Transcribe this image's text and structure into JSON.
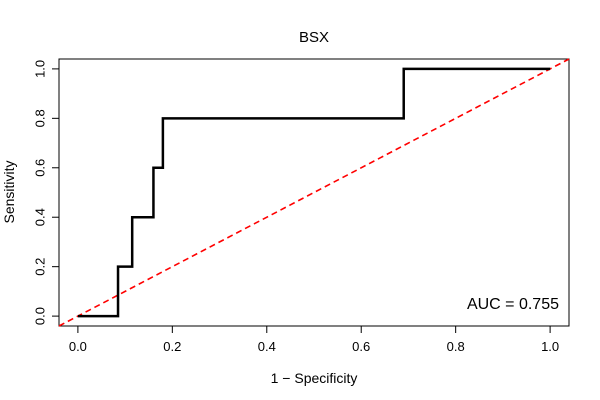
{
  "chart_data": {
    "type": "line",
    "title": "BSX",
    "xlabel": "1 − Specificity",
    "ylabel": "Sensitivity",
    "xlim": [
      -0.04,
      1.04
    ],
    "ylim": [
      -0.04,
      1.04
    ],
    "xticks": [
      "0.0",
      "0.2",
      "0.4",
      "0.6",
      "0.8",
      "1.0"
    ],
    "yticks": [
      "0.0",
      "0.2",
      "0.4",
      "0.6",
      "0.8",
      "1.0"
    ],
    "series": [
      {
        "name": "",
        "style": "step",
        "color": "#000000",
        "x": [
          0.0,
          0.085,
          0.085,
          0.115,
          0.115,
          0.16,
          0.16,
          0.18,
          0.18,
          0.69,
          0.69,
          1.0
        ],
        "y": [
          0.0,
          0.0,
          0.2,
          0.2,
          0.4,
          0.4,
          0.6,
          0.6,
          0.8,
          0.8,
          1.0,
          1.0
        ]
      }
    ],
    "reference_line": {
      "x": [
        -0.04,
        1.04
      ],
      "y": [
        -0.04,
        1.04
      ],
      "color": "#ff0000",
      "dashed": true
    },
    "annotations": [
      {
        "text": "AUC = 0.755",
        "position": "bottom-right"
      }
    ],
    "grid": false,
    "legend": "none"
  }
}
